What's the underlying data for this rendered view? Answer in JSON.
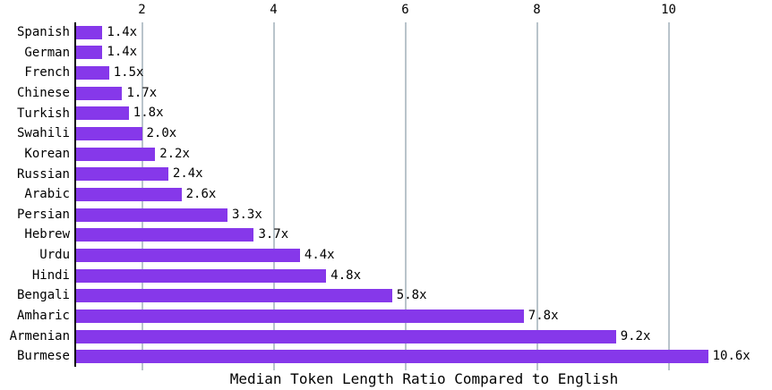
{
  "chart_data": {
    "type": "bar",
    "orientation": "horizontal",
    "title": "",
    "xlabel": "Median Token Length Ratio Compared to English",
    "ylabel": "",
    "categories": [
      "Spanish",
      "German",
      "French",
      "Chinese",
      "Turkish",
      "Swahili",
      "Korean",
      "Russian",
      "Arabic",
      "Persian",
      "Hebrew",
      "Urdu",
      "Hindi",
      "Bengali",
      "Amharic",
      "Armenian",
      "Burmese"
    ],
    "values": [
      1.4,
      1.4,
      1.5,
      1.7,
      1.8,
      2.0,
      2.2,
      2.4,
      2.6,
      3.3,
      3.7,
      4.4,
      4.8,
      5.8,
      7.8,
      9.2,
      10.6
    ],
    "value_labels": [
      "1.4x",
      "1.4x",
      "1.5x",
      "1.7x",
      "1.8x",
      "2.0x",
      "2.2x",
      "2.4x",
      "2.6x",
      "3.3x",
      "3.7x",
      "4.4x",
      "4.8x",
      "5.8x",
      "7.8x",
      "9.2x",
      "10.6x"
    ],
    "x_ticks": [
      "2",
      "4",
      "6",
      "8",
      "10"
    ],
    "x_tick_values": [
      2,
      4,
      6,
      8,
      10
    ],
    "xlim": [
      1,
      11.57
    ],
    "grid": true,
    "legend": false,
    "bar_color": "#8638EA",
    "grid_color": "#b9c4cb",
    "axis_color": "#000000",
    "text_color": "#000000"
  }
}
